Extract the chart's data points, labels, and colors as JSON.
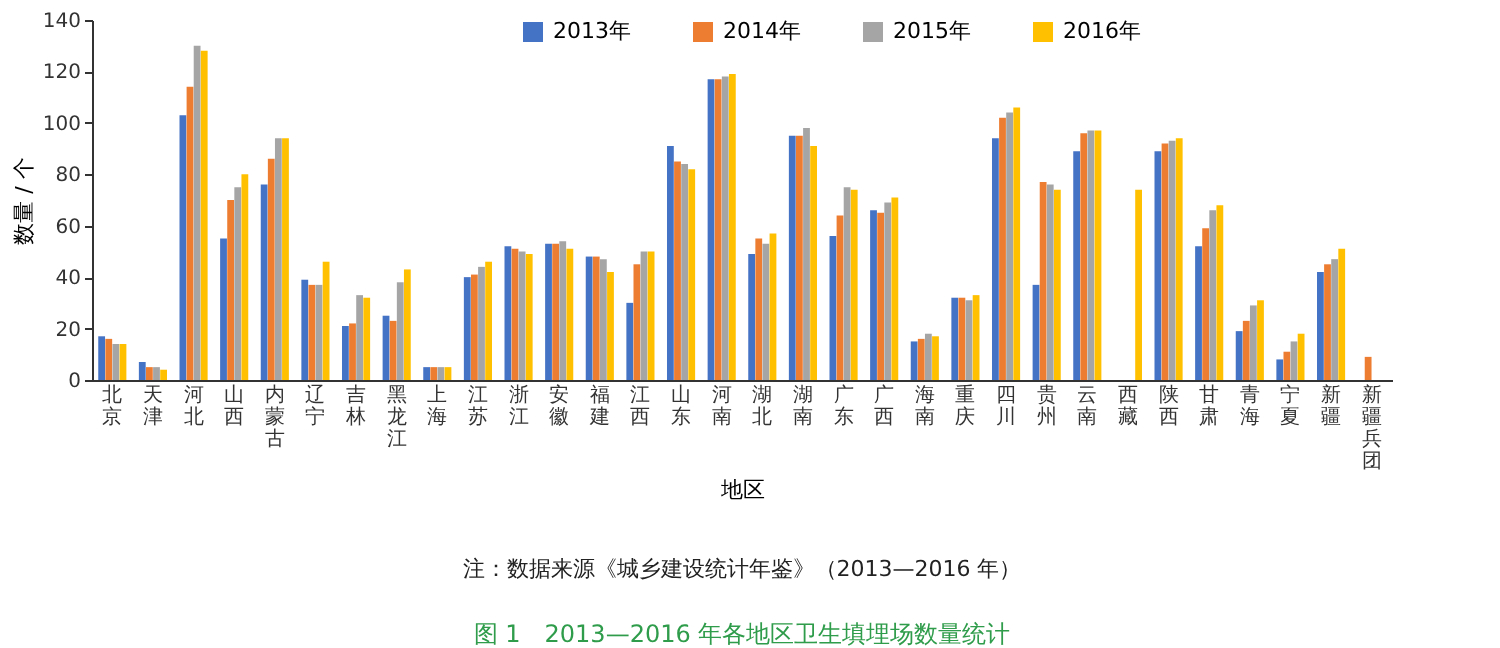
{
  "chart_data": {
    "type": "bar",
    "title": "图 1　2013—2016 年各地区卫生填埋场数量统计",
    "xlabel": "地区",
    "ylabel": "数量 / 个",
    "annotations": [
      "注：数据来源《城乡建设统计年鉴》（2013—2016 年）"
    ],
    "categories": [
      "北京",
      "天津",
      "河北",
      "山西",
      "内蒙古",
      "辽宁",
      "吉林",
      "黑龙江",
      "上海",
      "江苏",
      "浙江",
      "安徽",
      "福建",
      "江西",
      "山东",
      "河南",
      "湖北",
      "湖南",
      "广东",
      "广西",
      "海南",
      "重庆",
      "四川",
      "贵州",
      "云南",
      "西藏",
      "陕西",
      "甘肃",
      "青海",
      "宁夏",
      "新疆",
      "新疆兵团"
    ],
    "series": [
      {
        "name": "2013年",
        "color": "#4472c4",
        "values": [
          17,
          7,
          103,
          55,
          76,
          39,
          21,
          25,
          5,
          40,
          52,
          53,
          48,
          30,
          91,
          117,
          49,
          95,
          56,
          66,
          15,
          32,
          94,
          37,
          89,
          null,
          89,
          52,
          19,
          8,
          42,
          null
        ]
      },
      {
        "name": "2014年",
        "color": "#ed7d31",
        "values": [
          16,
          5,
          114,
          70,
          86,
          37,
          22,
          23,
          5,
          41,
          51,
          53,
          48,
          45,
          85,
          117,
          55,
          95,
          64,
          65,
          16,
          32,
          102,
          77,
          96,
          null,
          92,
          59,
          23,
          11,
          45,
          9
        ]
      },
      {
        "name": "2015年",
        "color": "#a5a5a5",
        "values": [
          14,
          5,
          130,
          75,
          94,
          37,
          33,
          38,
          5,
          44,
          50,
          54,
          47,
          50,
          84,
          118,
          53,
          98,
          75,
          69,
          18,
          31,
          104,
          76,
          97,
          null,
          93,
          66,
          29,
          15,
          47,
          null
        ]
      },
      {
        "name": "2016年",
        "color": "#ffc000",
        "values": [
          14,
          4,
          128,
          80,
          94,
          46,
          32,
          43,
          5,
          46,
          49,
          51,
          42,
          50,
          82,
          119,
          57,
          91,
          74,
          71,
          17,
          33,
          106,
          74,
          97,
          74,
          94,
          68,
          31,
          18,
          51,
          null
        ]
      }
    ],
    "ylim": [
      0,
      140
    ],
    "yticks": [
      0,
      20,
      40,
      60,
      80,
      100,
      120,
      140
    ],
    "grid": false,
    "legend": "top"
  }
}
